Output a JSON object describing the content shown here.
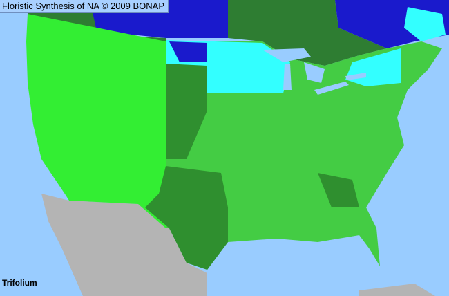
{
  "title": "Floristic Synthesis of NA © 2009 BONAP",
  "taxon": "Trifolium",
  "colors": {
    "ocean": "#99ccff",
    "present_native": "#33ee33",
    "present_mixed": "#44cc44",
    "present_dense": "#2f8f2f",
    "canada_present": "#2e7d32",
    "rare": "#33ffff",
    "canada_rare": "#1a1acc",
    "not_covered": "#b4b4b4"
  }
}
